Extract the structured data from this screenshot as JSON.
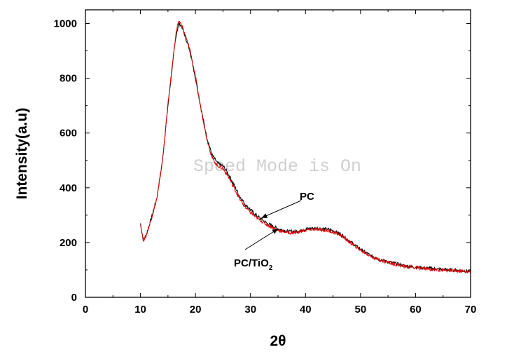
{
  "chart_data": {
    "type": "line",
    "xlabel": "2θ",
    "ylabel": "Intensity(a.u)",
    "xlim": [
      0,
      70
    ],
    "ylim": [
      0,
      1050
    ],
    "xticks": [
      0,
      10,
      20,
      30,
      40,
      50,
      60,
      70
    ],
    "yticks": [
      0,
      200,
      400,
      600,
      800,
      1000
    ],
    "grid": false,
    "watermark": "Speed Mode is On",
    "series": [
      {
        "name": "PC",
        "color": "#000000",
        "x": [
          10,
          10.5,
          11,
          12,
          13,
          14,
          15,
          16,
          16.5,
          17,
          17.5,
          18,
          19,
          20,
          21,
          22,
          23,
          24,
          25,
          26,
          27,
          28,
          29,
          30,
          31,
          32,
          33,
          34,
          35,
          36,
          37,
          38,
          39,
          40,
          41,
          42,
          43,
          44,
          45,
          46,
          47,
          48,
          49,
          50,
          52,
          54,
          56,
          58,
          60,
          62,
          64,
          66,
          68,
          70
        ],
        "y": [
          270,
          210,
          225,
          290,
          365,
          500,
          700,
          880,
          960,
          1000,
          990,
          960,
          900,
          800,
          690,
          590,
          520,
          490,
          480,
          450,
          410,
          370,
          340,
          320,
          300,
          285,
          270,
          260,
          250,
          245,
          240,
          240,
          243,
          248,
          252,
          252,
          250,
          248,
          243,
          235,
          222,
          205,
          190,
          175,
          150,
          135,
          125,
          115,
          110,
          107,
          103,
          100,
          98,
          95
        ]
      },
      {
        "name": "PC/TiO2",
        "color": "#e00000",
        "x": [
          10,
          10.5,
          11,
          12,
          13,
          14,
          15,
          16,
          16.5,
          17,
          17.5,
          18,
          19,
          20,
          21,
          22,
          23,
          24,
          25,
          26,
          27,
          28,
          29,
          30,
          31,
          32,
          33,
          34,
          35,
          36,
          37,
          38,
          39,
          40,
          41,
          42,
          43,
          44,
          45,
          46,
          47,
          48,
          49,
          50,
          52,
          54,
          56,
          58,
          60,
          62,
          64,
          66,
          68,
          70
        ],
        "y": [
          268,
          208,
          222,
          288,
          362,
          498,
          705,
          885,
          970,
          1010,
          995,
          965,
          905,
          805,
          690,
          585,
          510,
          480,
          470,
          440,
          400,
          360,
          330,
          310,
          292,
          278,
          265,
          255,
          245,
          240,
          236,
          236,
          240,
          245,
          248,
          248,
          246,
          243,
          238,
          230,
          218,
          202,
          187,
          172,
          148,
          133,
          122,
          113,
          108,
          104,
          100,
          98,
          96,
          93
        ]
      }
    ],
    "annotations": [
      {
        "text": "PC",
        "target": [
          32,
          290
        ]
      },
      {
        "text": "PC/TiO",
        "subscript": "2",
        "target": [
          35,
          250
        ]
      }
    ]
  }
}
